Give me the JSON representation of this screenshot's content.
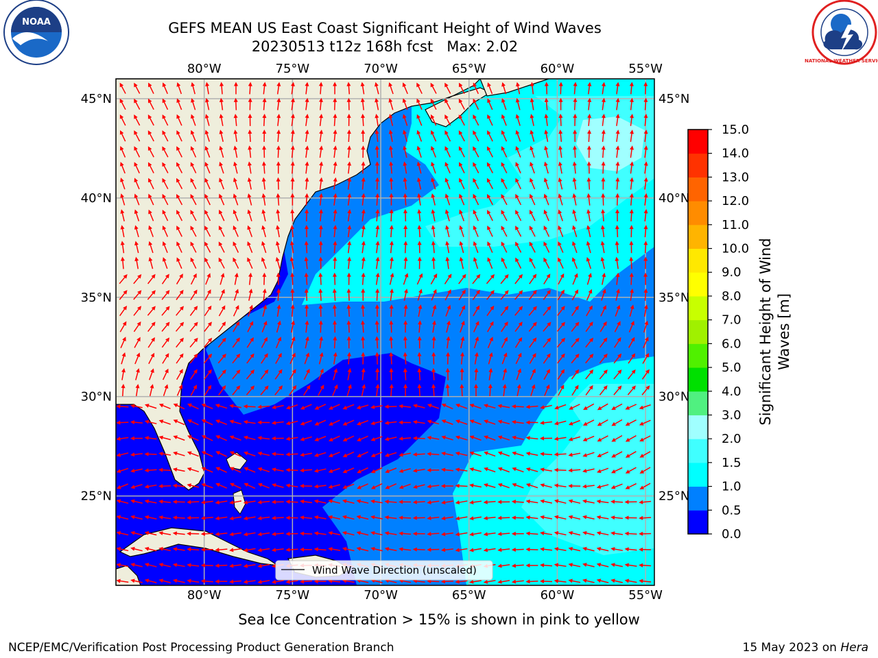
{
  "header": {
    "title_line1": "GEFS MEAN US East Coast Significant Height of Wind Waves",
    "title_line2": "20230513 t12z 168h fcst   Max: 2.02"
  },
  "logos": {
    "left": {
      "name": "NOAA",
      "ring_text": "NATIONAL OCEANIC AND ATMOSPHERIC ADMINISTRATION",
      "bottom_text": "U.S. DEPARTMENT OF COMMERCE"
    },
    "right": {
      "name": "NATIONAL WEATHER SERVICE"
    }
  },
  "map": {
    "lon_labels": [
      "80°W",
      "75°W",
      "70°W",
      "65°W",
      "60°W",
      "55°W"
    ],
    "lat_labels": [
      "45°N",
      "40°N",
      "35°N",
      "30°N",
      "25°N"
    ],
    "lon_values": [
      -80,
      -75,
      -70,
      -65,
      -60,
      -55
    ],
    "lat_values": [
      45,
      40,
      35,
      30,
      25
    ],
    "extent": {
      "lon_min": -85,
      "lon_max": -54.5,
      "lat_min": 20.5,
      "lat_max": 46
    },
    "land_color": "#efeedc",
    "grid_color": "#b0b0b0",
    "arrow_color": "#ff0000",
    "legend_label": "Wind Wave Direction (unscaled)"
  },
  "colorbar": {
    "label_line1": "Significant Height of Wind",
    "label_line2": "Waves [m]",
    "ticks": [
      "0.0",
      "0.5",
      "1.0",
      "1.5",
      "2.0",
      "3.0",
      "4.0",
      "5.0",
      "6.0",
      "7.0",
      "8.0",
      "9.0",
      "10.0",
      "11.0",
      "12.0",
      "13.0",
      "14.0",
      "15.0"
    ],
    "colors": [
      "#0000ff",
      "#0080ff",
      "#00ffff",
      "#40ffff",
      "#a0ffff",
      "#50f080",
      "#00e000",
      "#50f000",
      "#a0f000",
      "#c8ff00",
      "#ffff00",
      "#ffe800",
      "#ffb400",
      "#ff8c00",
      "#ff6400",
      "#ff3200",
      "#ff0000"
    ]
  },
  "footer": {
    "sea_ice_note": "Sea Ice Concentration > 15% is shown in pink to yellow",
    "left": "NCEP/EMC/Verification Post Processing Product Generation Branch",
    "right_date": "15 May 2023 on ",
    "right_host": "Hera"
  }
}
